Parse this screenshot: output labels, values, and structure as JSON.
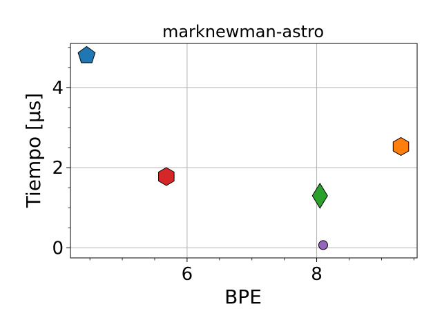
{
  "chart_data": {
    "type": "scatter",
    "title": "marknewman-astro",
    "xlabel": "BPE",
    "ylabel": "Tiempo [μs]",
    "xlim": [
      4.2,
      9.55
    ],
    "ylim": [
      -0.25,
      5.1
    ],
    "xticks": [
      6,
      8
    ],
    "xtick_labels": [
      "6",
      "8"
    ],
    "yticks": [
      0,
      2,
      4
    ],
    "ytick_labels": [
      "0",
      "2",
      "4"
    ],
    "grid": true,
    "points": [
      {
        "x": 4.45,
        "y": 4.8,
        "marker": "pentagon",
        "color": "#1f77b4"
      },
      {
        "x": 9.3,
        "y": 2.53,
        "marker": "hexagon",
        "color": "#ff7f0e"
      },
      {
        "x": 8.05,
        "y": 1.3,
        "marker": "diamond",
        "color": "#2ca02c"
      },
      {
        "x": 5.68,
        "y": 1.78,
        "marker": "hexagon",
        "color": "#d62728"
      },
      {
        "x": 8.1,
        "y": 0.07,
        "marker": "circle",
        "color": "#9467bd"
      }
    ]
  }
}
